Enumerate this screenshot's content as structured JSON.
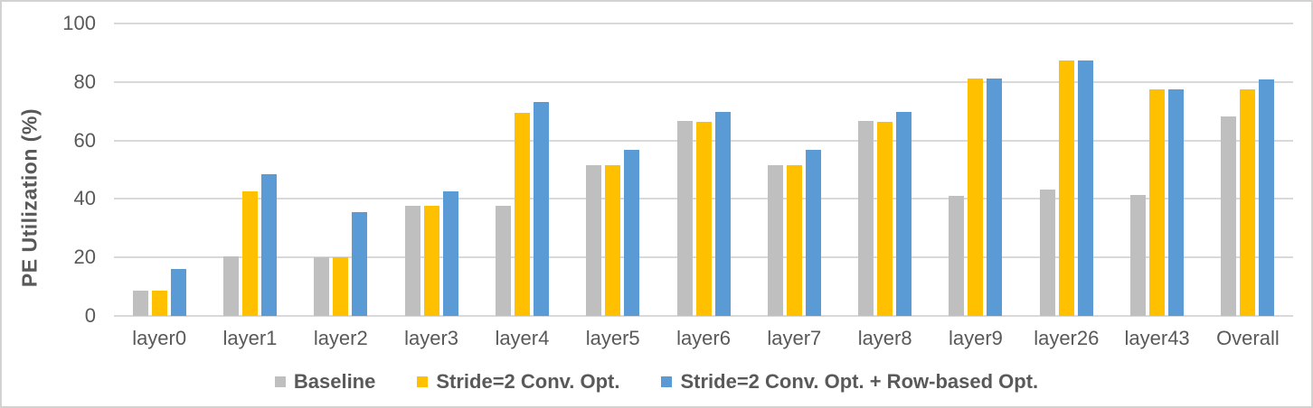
{
  "figure": {
    "background": "#ffffff",
    "border_color": "#d4d2d0"
  },
  "axis": {
    "text_color": "#595959",
    "gridline_color": "#d9d9d9"
  },
  "chart_data": {
    "type": "bar",
    "title": "",
    "xlabel": "",
    "ylabel": "PE Utilization (%)",
    "ylim": [
      0,
      100
    ],
    "yticks": [
      0,
      20,
      40,
      60,
      80,
      100
    ],
    "grid": true,
    "legend_position": "bottom",
    "categories": [
      "layer0",
      "layer1",
      "layer2",
      "layer3",
      "layer4",
      "layer5",
      "layer6",
      "layer7",
      "layer8",
      "layer9",
      "layer26",
      "layer43",
      "Overall"
    ],
    "series": [
      {
        "name": "Baseline",
        "color": "#bfbfbf",
        "values": [
          8.7,
          20.3,
          20.1,
          37.7,
          37.7,
          51.7,
          66.8,
          51.7,
          66.8,
          41.1,
          43.1,
          41.4,
          68.1
        ]
      },
      {
        "name": "Stride=2 Conv. Opt.",
        "color": "#ffc000",
        "values": [
          8.7,
          42.5,
          20.1,
          37.7,
          69.3,
          51.7,
          66.4,
          51.7,
          66.4,
          81.2,
          87.3,
          77.6,
          77.6
        ]
      },
      {
        "name": "Stride=2 Conv. Opt. + Row-based Opt.",
        "color": "#5b9bd5",
        "values": [
          16.2,
          48.4,
          35.4,
          42.6,
          73.1,
          56.9,
          69.9,
          56.9,
          69.9,
          81.2,
          87.3,
          77.6,
          81.0
        ]
      }
    ]
  }
}
